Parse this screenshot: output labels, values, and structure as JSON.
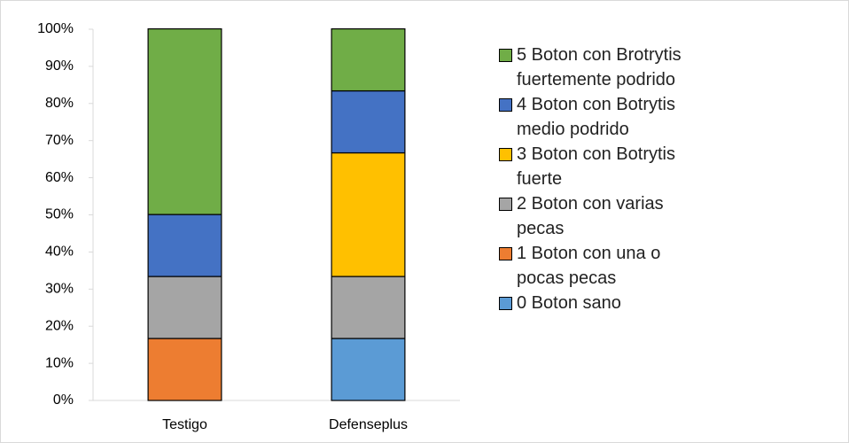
{
  "chart_data": {
    "type": "stacked_bar",
    "categories": [
      "Testigo",
      "Defenseplus"
    ],
    "series": [
      {
        "name": "0 Boton sano",
        "color": "#5b9bd5",
        "values": [
          0,
          16.7
        ]
      },
      {
        "name": "1 Boton con una o pocas pecas",
        "color": "#ed7d31",
        "values": [
          16.7,
          0
        ]
      },
      {
        "name": "2 Boton con varias pecas",
        "color": "#a5a5a5",
        "values": [
          16.7,
          16.7
        ]
      },
      {
        "name": "3 Boton con Botrytis fuerte",
        "color": "#ffc000",
        "values": [
          0,
          33.3
        ]
      },
      {
        "name": "4 Boton con Botrytis medio podrido",
        "color": "#4472c4",
        "values": [
          16.7,
          16.7
        ]
      },
      {
        "name": "5 Boton con Brotrytis fuertemente podrido",
        "color": "#70ad47",
        "values": [
          50,
          16.7
        ]
      }
    ],
    "ylim": [
      0,
      100
    ],
    "yticks": [
      {
        "value": 0,
        "label": "0%"
      },
      {
        "value": 10,
        "label": "10%"
      },
      {
        "value": 20,
        "label": "20%"
      },
      {
        "value": 30,
        "label": "30%"
      },
      {
        "value": 40,
        "label": "40%"
      },
      {
        "value": 50,
        "label": "50%"
      },
      {
        "value": 60,
        "label": "60%"
      },
      {
        "value": 70,
        "label": "70%"
      },
      {
        "value": 80,
        "label": "80%"
      },
      {
        "value": 90,
        "label": "90%"
      },
      {
        "value": 100,
        "label": "100%"
      }
    ],
    "legend": "right"
  }
}
